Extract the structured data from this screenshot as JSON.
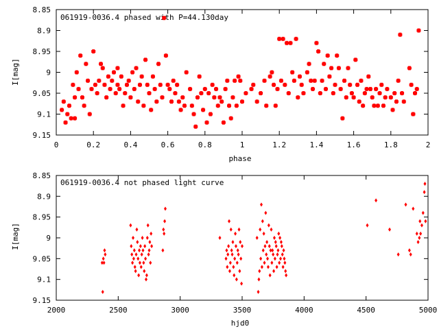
{
  "chart_data": [
    {
      "type": "scatter",
      "title": "061919-0036.4 phased with P=44.130day",
      "xlabel": "phase",
      "ylabel": "I[mag]",
      "xlim": [
        0,
        2
      ],
      "ylim": [
        8.85,
        9.15
      ],
      "y_inverted": true,
      "x_ticks": [
        "0",
        "0.2",
        "0.4",
        "0.6",
        "0.8",
        "1",
        "1.2",
        "1.4",
        "1.6",
        "1.8",
        "2"
      ],
      "y_ticks": [
        "8.85",
        "8.9",
        "8.95",
        "9",
        "9.05",
        "9.1",
        "9.15"
      ],
      "marker_color": "#ff0000",
      "marker": "star",
      "grid": false,
      "points": [
        [
          0.03,
          9.09
        ],
        [
          0.04,
          9.07
        ],
        [
          0.05,
          9.12
        ],
        [
          0.06,
          9.1
        ],
        [
          0.07,
          9.08
        ],
        [
          0.08,
          9.11
        ],
        [
          0.09,
          9.03
        ],
        [
          0.1,
          9.11
        ],
        [
          0.1,
          9.06
        ],
        [
          0.11,
          9.0
        ],
        [
          0.12,
          9.04
        ],
        [
          0.13,
          8.96
        ],
        [
          0.14,
          9.06
        ],
        [
          0.15,
          9.08
        ],
        [
          0.16,
          8.98
        ],
        [
          0.17,
          9.02
        ],
        [
          0.18,
          9.1
        ],
        [
          0.19,
          9.04
        ],
        [
          0.2,
          8.95
        ],
        [
          0.21,
          9.03
        ],
        [
          0.22,
          9.05
        ],
        [
          0.23,
          9.02
        ],
        [
          0.24,
          8.98
        ],
        [
          0.25,
          8.99
        ],
        [
          0.26,
          9.03
        ],
        [
          0.27,
          9.06
        ],
        [
          0.28,
          9.01
        ],
        [
          0.29,
          9.04
        ],
        [
          0.3,
          9.02
        ],
        [
          0.31,
          9.0
        ],
        [
          0.32,
          9.05
        ],
        [
          0.33,
          8.99
        ],
        [
          0.33,
          9.03
        ],
        [
          0.34,
          9.04
        ],
        [
          0.35,
          9.01
        ],
        [
          0.36,
          9.08
        ],
        [
          0.37,
          9.05
        ],
        [
          0.38,
          9.03
        ],
        [
          0.39,
          9.02
        ],
        [
          0.4,
          9.06
        ],
        [
          0.41,
          9.0
        ],
        [
          0.42,
          9.04
        ],
        [
          0.43,
          8.99
        ],
        [
          0.44,
          9.07
        ],
        [
          0.45,
          9.03
        ],
        [
          0.46,
          9.01
        ],
        [
          0.47,
          9.08
        ],
        [
          0.48,
          8.97
        ],
        [
          0.49,
          9.03
        ],
        [
          0.5,
          9.05
        ],
        [
          0.51,
          9.09
        ],
        [
          0.52,
          9.01
        ],
        [
          0.53,
          9.04
        ],
        [
          0.54,
          9.07
        ],
        [
          0.55,
          8.98
        ],
        [
          0.56,
          9.03
        ],
        [
          0.57,
          9.06
        ],
        [
          0.58,
          8.87
        ],
        [
          0.59,
          8.96
        ],
        [
          0.6,
          9.03
        ],
        [
          0.61,
          9.04
        ],
        [
          0.62,
          9.07
        ],
        [
          0.63,
          9.02
        ],
        [
          0.64,
          9.05
        ],
        [
          0.65,
          9.03
        ],
        [
          0.66,
          9.07
        ],
        [
          0.67,
          9.09
        ],
        [
          0.68,
          9.06
        ],
        [
          0.69,
          9.08
        ],
        [
          0.7,
          9.0
        ],
        [
          0.72,
          9.04
        ],
        [
          0.73,
          9.08
        ],
        [
          0.74,
          9.1
        ],
        [
          0.75,
          9.13
        ],
        [
          0.76,
          9.06
        ],
        [
          0.77,
          9.01
        ],
        [
          0.78,
          9.05
        ],
        [
          0.79,
          9.09
        ],
        [
          0.8,
          9.04
        ],
        [
          0.81,
          9.12
        ],
        [
          0.82,
          9.05
        ],
        [
          0.83,
          9.1
        ],
        [
          0.84,
          9.03
        ],
        [
          0.85,
          9.06
        ],
        [
          0.86,
          9.04
        ],
        [
          0.87,
          9.08
        ],
        [
          0.88,
          9.06
        ],
        [
          0.89,
          9.07
        ],
        [
          0.9,
          9.12
        ],
        [
          0.91,
          9.04
        ],
        [
          0.92,
          9.02
        ],
        [
          0.93,
          9.08
        ],
        [
          0.94,
          9.11
        ],
        [
          0.95,
          9.06
        ],
        [
          0.96,
          9.02
        ],
        [
          0.97,
          9.08
        ],
        [
          0.98,
          9.01
        ],
        [
          0.99,
          9.02
        ],
        [
          1.0,
          9.07
        ],
        [
          1.02,
          9.05
        ],
        [
          1.05,
          9.04
        ],
        [
          1.06,
          9.03
        ],
        [
          1.08,
          9.07
        ],
        [
          1.1,
          9.05
        ],
        [
          1.12,
          9.02
        ],
        [
          1.13,
          9.08
        ],
        [
          1.15,
          9.01
        ],
        [
          1.16,
          9.0
        ],
        [
          1.17,
          9.03
        ],
        [
          1.18,
          9.08
        ],
        [
          1.19,
          9.04
        ],
        [
          1.2,
          8.92
        ],
        [
          1.21,
          9.02
        ],
        [
          1.22,
          8.92
        ],
        [
          1.23,
          9.03
        ],
        [
          1.24,
          8.93
        ],
        [
          1.25,
          9.05
        ],
        [
          1.26,
          8.93
        ],
        [
          1.27,
          9.0
        ],
        [
          1.28,
          9.02
        ],
        [
          1.29,
          8.92
        ],
        [
          1.3,
          9.06
        ],
        [
          1.31,
          9.01
        ],
        [
          1.32,
          9.03
        ],
        [
          1.33,
          9.05
        ],
        [
          1.35,
          9.0
        ],
        [
          1.36,
          8.98
        ],
        [
          1.37,
          9.02
        ],
        [
          1.38,
          9.04
        ],
        [
          1.39,
          9.02
        ],
        [
          1.4,
          8.93
        ],
        [
          1.41,
          8.95
        ],
        [
          1.42,
          9.05
        ],
        [
          1.43,
          9.02
        ],
        [
          1.44,
          8.98
        ],
        [
          1.45,
          9.04
        ],
        [
          1.46,
          8.96
        ],
        [
          1.47,
          9.01
        ],
        [
          1.48,
          8.99
        ],
        [
          1.49,
          9.05
        ],
        [
          1.5,
          9.03
        ],
        [
          1.51,
          8.96
        ],
        [
          1.52,
          8.99
        ],
        [
          1.53,
          9.04
        ],
        [
          1.54,
          9.11
        ],
        [
          1.55,
          9.02
        ],
        [
          1.56,
          9.06
        ],
        [
          1.57,
          8.99
        ],
        [
          1.58,
          9.03
        ],
        [
          1.59,
          9.05
        ],
        [
          1.6,
          9.06
        ],
        [
          1.61,
          8.97
        ],
        [
          1.62,
          9.03
        ],
        [
          1.63,
          9.07
        ],
        [
          1.64,
          9.02
        ],
        [
          1.65,
          9.08
        ],
        [
          1.66,
          9.05
        ],
        [
          1.67,
          9.04
        ],
        [
          1.68,
          9.01
        ],
        [
          1.69,
          9.04
        ],
        [
          1.7,
          9.06
        ],
        [
          1.71,
          9.08
        ],
        [
          1.72,
          9.04
        ],
        [
          1.73,
          9.08
        ],
        [
          1.74,
          9.05
        ],
        [
          1.75,
          9.03
        ],
        [
          1.76,
          9.08
        ],
        [
          1.77,
          9.06
        ],
        [
          1.78,
          9.04
        ],
        [
          1.8,
          9.06
        ],
        [
          1.81,
          9.09
        ],
        [
          1.82,
          9.05
        ],
        [
          1.83,
          9.07
        ],
        [
          1.84,
          9.02
        ],
        [
          1.85,
          8.91
        ],
        [
          1.86,
          9.05
        ],
        [
          1.87,
          9.07
        ],
        [
          1.9,
          8.99
        ],
        [
          1.91,
          9.03
        ],
        [
          1.92,
          9.1
        ],
        [
          1.92,
          9.1
        ],
        [
          1.93,
          9.05
        ],
        [
          1.94,
          9.04
        ],
        [
          1.95,
          8.9
        ]
      ]
    },
    {
      "type": "scatter",
      "title": "061919-0036.4 not phased light curve",
      "xlabel": "hjd0",
      "ylabel": "I[mag]",
      "xlim": [
        2000,
        5000
      ],
      "ylim": [
        8.85,
        9.15
      ],
      "y_inverted": true,
      "x_ticks": [
        "2000",
        "2500",
        "3000",
        "3500",
        "4000",
        "4500",
        "5000"
      ],
      "y_ticks": [
        "8.85",
        "8.9",
        "8.95",
        "9",
        "9.05",
        "9.1",
        "9.15"
      ],
      "marker_color": "#ff0000",
      "marker": "diamond",
      "grid": false,
      "points": [
        [
          2370,
          9.06
        ],
        [
          2375,
          9.13
        ],
        [
          2380,
          9.05
        ],
        [
          2385,
          9.06
        ],
        [
          2390,
          9.03
        ],
        [
          2395,
          9.04
        ],
        [
          2600,
          8.97
        ],
        [
          2605,
          9.02
        ],
        [
          2610,
          9.04
        ],
        [
          2615,
          9.06
        ],
        [
          2620,
          9.0
        ],
        [
          2625,
          9.05
        ],
        [
          2630,
          9.03
        ],
        [
          2635,
          9.07
        ],
        [
          2640,
          9.08
        ],
        [
          2645,
          9.04
        ],
        [
          2650,
          8.98
        ],
        [
          2655,
          9.01
        ],
        [
          2660,
          9.05
        ],
        [
          2665,
          9.09
        ],
        [
          2670,
          9.03
        ],
        [
          2675,
          9.06
        ],
        [
          2680,
          9.02
        ],
        [
          2685,
          9.07
        ],
        [
          2690,
          9.04
        ],
        [
          2695,
          9.0
        ],
        [
          2700,
          9.03
        ],
        [
          2705,
          9.06
        ],
        [
          2710,
          9.08
        ],
        [
          2715,
          9.02
        ],
        [
          2720,
          9.05
        ],
        [
          2725,
          9.1
        ],
        [
          2730,
          9.09
        ],
        [
          2735,
          9.0
        ],
        [
          2740,
          8.97
        ],
        [
          2745,
          9.04
        ],
        [
          2750,
          9.03
        ],
        [
          2755,
          9.01
        ],
        [
          2760,
          9.06
        ],
        [
          2765,
          8.99
        ],
        [
          2770,
          9.02
        ],
        [
          2860,
          9.03
        ],
        [
          2865,
          8.98
        ],
        [
          2870,
          8.99
        ],
        [
          2875,
          8.96
        ],
        [
          2880,
          8.93
        ],
        [
          3320,
          9.0
        ],
        [
          3370,
          9.05
        ],
        [
          3375,
          9.03
        ],
        [
          3380,
          9.07
        ],
        [
          3385,
          9.04
        ],
        [
          3390,
          9.02
        ],
        [
          3395,
          8.96
        ],
        [
          3400,
          9.08
        ],
        [
          3405,
          9.06
        ],
        [
          3410,
          8.98
        ],
        [
          3415,
          9.03
        ],
        [
          3420,
          9.04
        ],
        [
          3425,
          9.01
        ],
        [
          3430,
          9.07
        ],
        [
          3435,
          9.09
        ],
        [
          3440,
          9.05
        ],
        [
          3445,
          8.99
        ],
        [
          3450,
          9.02
        ],
        [
          3455,
          9.1
        ],
        [
          3460,
          9.06
        ],
        [
          3465,
          9.03
        ],
        [
          3470,
          9.04
        ],
        [
          3475,
          8.98
        ],
        [
          3480,
          9.08
        ],
        [
          3485,
          9.01
        ],
        [
          3490,
          9.05
        ],
        [
          3495,
          9.11
        ],
        [
          3500,
          9.02
        ],
        [
          3620,
          9.0
        ],
        [
          3630,
          9.13
        ],
        [
          3635,
          9.1
        ],
        [
          3640,
          9.08
        ],
        [
          3645,
          8.98
        ],
        [
          3650,
          9.05
        ],
        [
          3655,
          8.92
        ],
        [
          3660,
          9.07
        ],
        [
          3665,
          8.96
        ],
        [
          3670,
          9.03
        ],
        [
          3675,
          8.99
        ],
        [
          3680,
          9.06
        ],
        [
          3685,
          9.02
        ],
        [
          3690,
          8.94
        ],
        [
          3695,
          9.04
        ],
        [
          3700,
          9.01
        ],
        [
          3705,
          9.05
        ],
        [
          3710,
          9.07
        ],
        [
          3715,
          8.97
        ],
        [
          3720,
          9.02
        ],
        [
          3725,
          9.09
        ],
        [
          3730,
          9.03
        ],
        [
          3735,
          8.98
        ],
        [
          3740,
          9.06
        ],
        [
          3745,
          9.03
        ],
        [
          3750,
          9.04
        ],
        [
          3755,
          9.08
        ],
        [
          3760,
          9.0
        ],
        [
          3765,
          9.05
        ],
        [
          3770,
          9.01
        ],
        [
          3775,
          9.02
        ],
        [
          3780,
          9.07
        ],
        [
          3785,
          9.04
        ],
        [
          3790,
          9.03
        ],
        [
          3795,
          8.99
        ],
        [
          3800,
          9.06
        ],
        [
          3805,
          9.0
        ],
        [
          3810,
          9.05
        ],
        [
          3815,
          9.01
        ],
        [
          3820,
          9.02
        ],
        [
          3825,
          9.04
        ],
        [
          3830,
          9.07
        ],
        [
          3835,
          9.03
        ],
        [
          3840,
          9.05
        ],
        [
          3845,
          9.06
        ],
        [
          3850,
          9.08
        ],
        [
          3855,
          9.09
        ],
        [
          4510,
          8.97
        ],
        [
          4580,
          8.91
        ],
        [
          4690,
          8.98
        ],
        [
          4760,
          9.04
        ],
        [
          4820,
          8.92
        ],
        [
          4850,
          9.03
        ],
        [
          4860,
          9.04
        ],
        [
          4880,
          8.93
        ],
        [
          4910,
          8.99
        ],
        [
          4920,
          9.01
        ],
        [
          4930,
          9.0
        ],
        [
          4935,
          8.96
        ],
        [
          4940,
          8.99
        ],
        [
          4950,
          8.97
        ],
        [
          4960,
          8.94
        ],
        [
          4970,
          8.89
        ],
        [
          4975,
          8.87
        ],
        [
          4980,
          8.96
        ]
      ]
    }
  ]
}
